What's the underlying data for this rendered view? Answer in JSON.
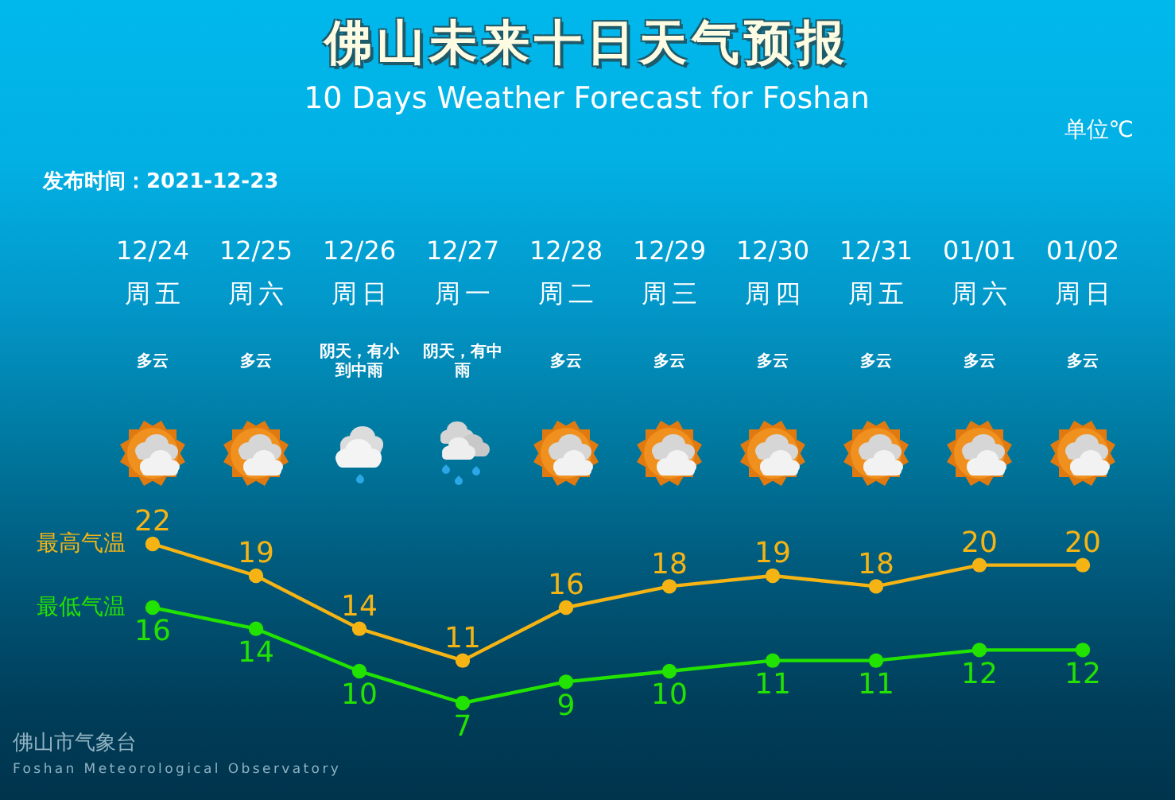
{
  "chart_data": {
    "type": "line",
    "title": "佛山未来十日天气预报",
    "subtitle": "10 Days Weather Forecast for Foshan",
    "categories": [
      "12/24",
      "12/25",
      "12/26",
      "12/27",
      "12/28",
      "12/29",
      "12/30",
      "12/31",
      "01/01",
      "01/02"
    ],
    "series": [
      {
        "name": "最高气温",
        "color": "#f5b414",
        "values": [
          22,
          19,
          14,
          11,
          16,
          18,
          19,
          18,
          20,
          20
        ]
      },
      {
        "name": "最低气温",
        "color": "#22e200",
        "values": [
          16,
          14,
          10,
          7,
          9,
          10,
          11,
          11,
          12,
          12
        ]
      }
    ],
    "data_labels": true,
    "marker": "circle",
    "line_style": "solid",
    "legend": "left",
    "annotations": [
      "单位℃",
      "发布时间：2021-12-23",
      "佛山市气象台",
      "Foshan Meteorological Observatory",
      "周五",
      "周六",
      "周日",
      "周一",
      "周二",
      "周三",
      "周四",
      "周五",
      "周六",
      "周日",
      "多云",
      "多云",
      "阴天，有小到中雨",
      "阴天，有中雨",
      "多云",
      "多云",
      "多云",
      "多云",
      "多云",
      "多云"
    ]
  }
}
